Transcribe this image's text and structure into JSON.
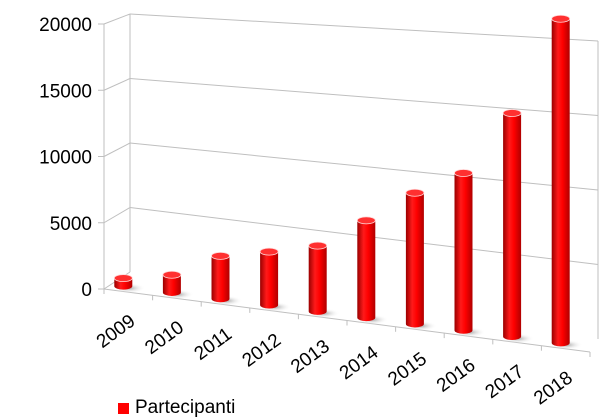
{
  "chart_data": {
    "type": "bar",
    "style": "3d-cylinder",
    "categories": [
      "2009",
      "2010",
      "2011",
      "2012",
      "2013",
      "2014",
      "2015",
      "2016",
      "2017",
      "2018"
    ],
    "series": [
      {
        "name": "Partecipanti",
        "color": "#FF0000",
        "values": [
          600,
          1300,
          3100,
          3800,
          4600,
          6700,
          8900,
          10500,
          14700,
          21000
        ]
      }
    ],
    "y_ticks": [
      "0",
      "5000",
      "10000",
      "15000",
      "20000"
    ],
    "ylim": [
      0,
      20000
    ],
    "grid": true,
    "legend": "bottom-left"
  }
}
